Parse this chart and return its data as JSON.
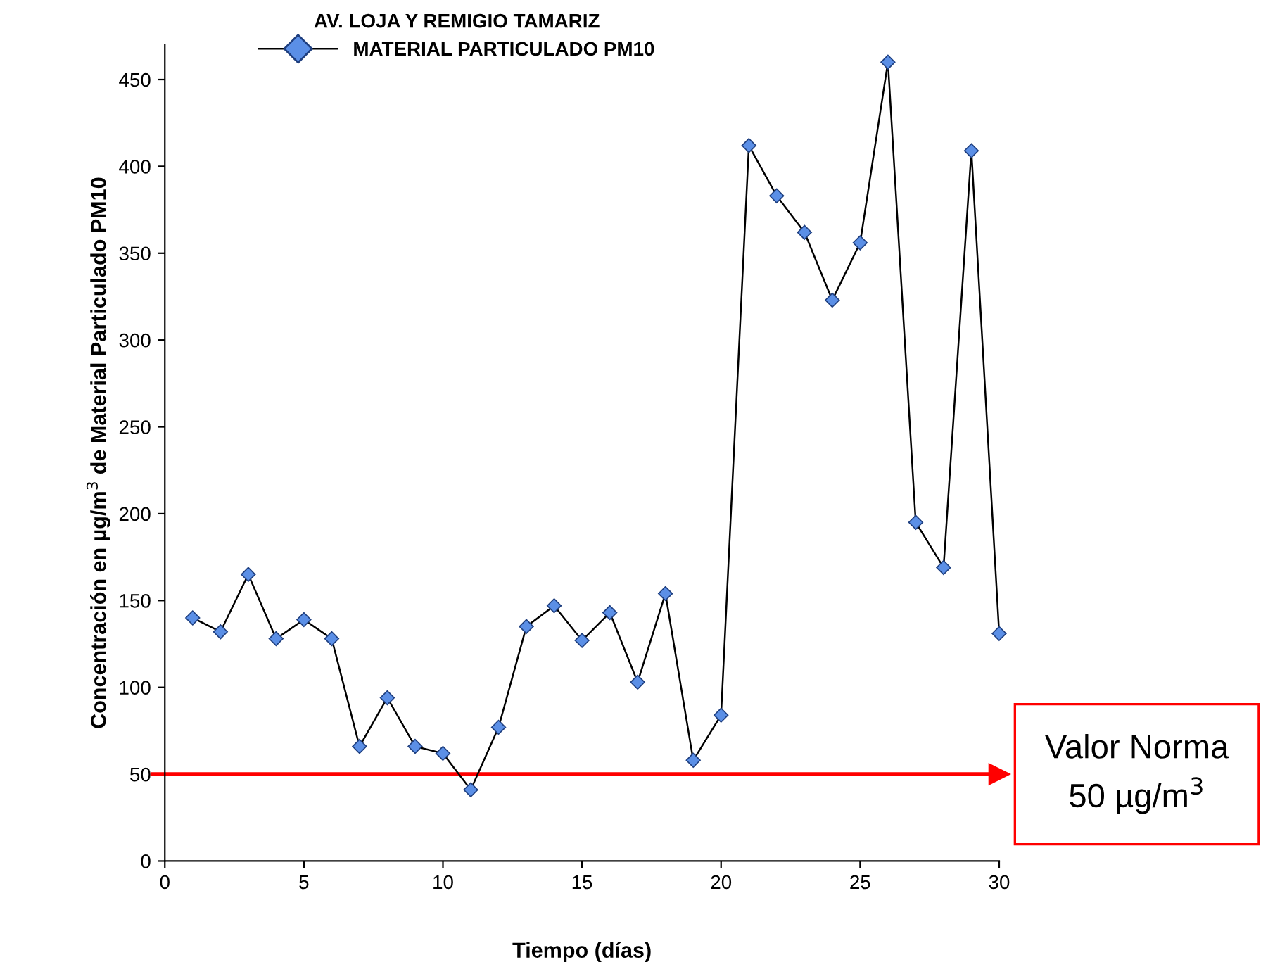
{
  "chart_data": {
    "type": "line",
    "legend_title": "AV. LOJA Y REMIGIO TAMARIZ",
    "xlabel": "Tiempo (días)",
    "ylabel": "Concentración en µg/m$^{3}$ de Material Particulado PM10",
    "x": [
      1,
      2,
      3,
      4,
      5,
      6,
      7,
      8,
      9,
      10,
      11,
      12,
      13,
      14,
      15,
      16,
      17,
      18,
      19,
      20,
      21,
      22,
      23,
      24,
      25,
      26,
      27,
      28,
      29,
      30
    ],
    "series": [
      {
        "name": "MATERIAL PARTICULADO PM10",
        "color": "#5b8fe6",
        "values": [
          140,
          132,
          165,
          128,
          139,
          128,
          66,
          94,
          66,
          62,
          41,
          77,
          135,
          147,
          127,
          143,
          103,
          154,
          58,
          84,
          412,
          383,
          362,
          323,
          356,
          460,
          195,
          169,
          409,
          131
        ]
      }
    ],
    "xlim": [
      0,
      30
    ],
    "xticks": [
      0,
      5,
      10,
      15,
      20,
      25,
      30
    ],
    "ylim": [
      0,
      470
    ],
    "yticks": [
      0,
      50,
      100,
      150,
      200,
      250,
      300,
      350,
      400,
      450
    ],
    "ref_lines": [
      {
        "axis": "y",
        "value": 50,
        "label": "Valor Norma\n50 µg/m$^{3}$",
        "color": "#ff0000"
      }
    ],
    "marker": "diamond",
    "line_style": "solid",
    "grid": false,
    "legend": "top"
  }
}
